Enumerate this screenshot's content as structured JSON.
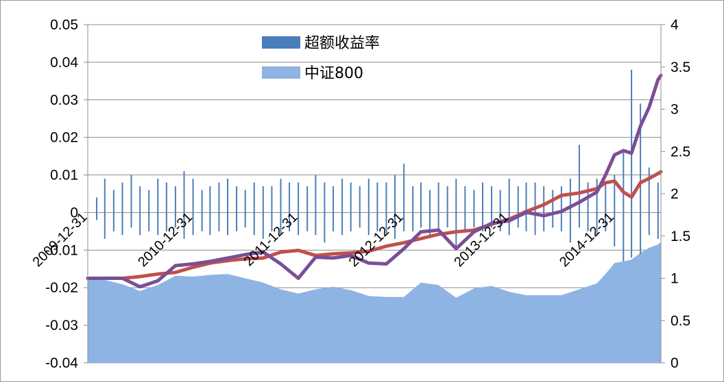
{
  "chart_data": {
    "type": "combo",
    "x_ticks": [
      "2009-12-31",
      "2010-12-31",
      "2011-12-31",
      "2012-12-31",
      "2013-12-31",
      "2014-12-31"
    ],
    "x_range": [
      "2009-12-31",
      "2015-06-10"
    ],
    "y_left": {
      "ticks": [
        "0.05",
        "0.04",
        "0.03",
        "0.02",
        "0.01",
        "0",
        "-0.01",
        "-0.02",
        "-0.03",
        "-0.04"
      ],
      "range": [
        -0.04,
        0.05
      ]
    },
    "y_right": {
      "ticks": [
        "4",
        "3.5",
        "3",
        "2.5",
        "2",
        "1.5",
        "1",
        "0.5",
        "0"
      ],
      "range": [
        0,
        4
      ]
    },
    "gridlines": "horizontal",
    "legend": {
      "position": "top-center",
      "entries": [
        {
          "label": "超额收益率",
          "color": "#4A7EBB"
        },
        {
          "label": "中证800",
          "color": "#8EB4E3"
        }
      ]
    },
    "series": [
      {
        "name": "超额收益率",
        "type": "bar",
        "axis": "left",
        "color": "#4A7EBB",
        "x": [
          "2010-01-31",
          "2010-02-28",
          "2010-03-31",
          "2010-04-30",
          "2010-05-31",
          "2010-06-30",
          "2010-07-31",
          "2010-08-31",
          "2010-09-30",
          "2010-10-31",
          "2010-11-30",
          "2010-12-31",
          "2011-01-31",
          "2011-02-28",
          "2011-03-31",
          "2011-04-30",
          "2011-05-31",
          "2011-06-30",
          "2011-07-31",
          "2011-08-31",
          "2011-09-30",
          "2011-10-31",
          "2011-11-30",
          "2011-12-31",
          "2012-01-31",
          "2012-02-29",
          "2012-03-31",
          "2012-04-30",
          "2012-05-31",
          "2012-06-30",
          "2012-07-31",
          "2012-08-31",
          "2012-09-30",
          "2012-10-31",
          "2012-11-30",
          "2012-12-31",
          "2013-01-31",
          "2013-02-28",
          "2013-03-31",
          "2013-04-30",
          "2013-05-31",
          "2013-06-30",
          "2013-07-31",
          "2013-08-31",
          "2013-09-30",
          "2013-10-31",
          "2013-11-30",
          "2013-12-31",
          "2014-01-31",
          "2014-02-28",
          "2014-03-31",
          "2014-04-30",
          "2014-05-31",
          "2014-06-30",
          "2014-07-31",
          "2014-08-31",
          "2014-09-30",
          "2014-10-31",
          "2014-11-30",
          "2014-12-31",
          "2015-01-31",
          "2015-02-28",
          "2015-03-31",
          "2015-04-30",
          "2015-05-31"
        ],
        "values_high": [
          0.004,
          0.009,
          0.006,
          0.008,
          0.01,
          0.007,
          0.006,
          0.009,
          0.008,
          0.007,
          0.011,
          0.009,
          0.006,
          0.007,
          0.008,
          0.009,
          0.007,
          0.006,
          0.008,
          0.007,
          0.007,
          0.009,
          0.008,
          0.008,
          0.007,
          0.01,
          0.008,
          0.007,
          0.009,
          0.008,
          0.007,
          0.009,
          0.008,
          0.008,
          0.01,
          0.013,
          0.007,
          0.008,
          0.006,
          0.008,
          0.007,
          0.009,
          0.007,
          0.006,
          0.008,
          0.007,
          0.006,
          0.009,
          0.007,
          0.008,
          0.008,
          0.007,
          0.006,
          0.007,
          0.009,
          0.018,
          0.008,
          0.009,
          0.008,
          0.01,
          0.016,
          0.038,
          0.029,
          0.012,
          0.008
        ],
        "values_low": [
          -0.002,
          -0.007,
          -0.005,
          -0.006,
          -0.004,
          -0.006,
          -0.005,
          -0.006,
          -0.005,
          -0.004,
          -0.007,
          -0.006,
          -0.005,
          -0.006,
          -0.005,
          -0.006,
          -0.005,
          -0.004,
          -0.006,
          -0.007,
          -0.005,
          -0.006,
          -0.005,
          -0.006,
          -0.005,
          -0.006,
          -0.008,
          -0.005,
          -0.006,
          -0.005,
          -0.004,
          -0.006,
          -0.005,
          -0.006,
          -0.007,
          -0.005,
          -0.005,
          -0.004,
          -0.006,
          -0.005,
          -0.004,
          -0.009,
          -0.005,
          -0.004,
          -0.005,
          -0.004,
          -0.005,
          -0.006,
          -0.004,
          -0.005,
          -0.006,
          -0.005,
          -0.004,
          -0.005,
          -0.008,
          -0.004,
          -0.005,
          -0.006,
          -0.005,
          -0.009,
          -0.013,
          -0.012,
          -0.011,
          -0.006,
          -0.007
        ]
      },
      {
        "name": "中证800",
        "type": "area",
        "axis": "right",
        "color": "#8EB4E3",
        "x": [
          "2009-12-31",
          "2010-02-28",
          "2010-04-30",
          "2010-06-30",
          "2010-08-31",
          "2010-10-31",
          "2010-12-31",
          "2011-02-28",
          "2011-04-30",
          "2011-06-30",
          "2011-08-31",
          "2011-10-31",
          "2011-12-31",
          "2012-02-29",
          "2012-04-30",
          "2012-06-30",
          "2012-08-31",
          "2012-10-31",
          "2012-12-31",
          "2013-02-28",
          "2013-04-30",
          "2013-06-30",
          "2013-08-31",
          "2013-10-31",
          "2013-12-31",
          "2014-02-28",
          "2014-04-30",
          "2014-06-30",
          "2014-08-31",
          "2014-10-31",
          "2014-11-30",
          "2014-12-31",
          "2015-01-31",
          "2015-02-28",
          "2015-03-31",
          "2015-04-30",
          "2015-05-31",
          "2015-06-10"
        ],
        "values": [
          1.0,
          0.98,
          0.93,
          0.85,
          0.92,
          1.03,
          1.02,
          1.04,
          1.05,
          1.0,
          0.95,
          0.87,
          0.82,
          0.87,
          0.9,
          0.86,
          0.79,
          0.78,
          0.78,
          0.95,
          0.92,
          0.77,
          0.88,
          0.91,
          0.84,
          0.8,
          0.8,
          0.8,
          0.87,
          0.94,
          1.05,
          1.18,
          1.2,
          1.22,
          1.3,
          1.36,
          1.4,
          1.43
        ]
      },
      {
        "name": "red",
        "type": "line",
        "axis": "right",
        "color": "#C0504D",
        "x": [
          "2009-12-31",
          "2010-02-28",
          "2010-04-30",
          "2010-06-30",
          "2010-08-31",
          "2010-10-31",
          "2010-12-31",
          "2011-02-28",
          "2011-04-30",
          "2011-06-30",
          "2011-08-31",
          "2011-10-31",
          "2011-12-31",
          "2012-02-29",
          "2012-04-30",
          "2012-06-30",
          "2012-08-31",
          "2012-10-31",
          "2012-12-31",
          "2013-02-28",
          "2013-04-30",
          "2013-06-30",
          "2013-08-31",
          "2013-10-31",
          "2013-12-31",
          "2014-02-28",
          "2014-04-30",
          "2014-06-30",
          "2014-08-31",
          "2014-10-31",
          "2014-11-30",
          "2014-12-31",
          "2015-01-31",
          "2015-02-28",
          "2015-03-31",
          "2015-04-30",
          "2015-05-31",
          "2015-06-10"
        ],
        "values": [
          1.0,
          1.0,
          1.0,
          1.02,
          1.05,
          1.07,
          1.13,
          1.18,
          1.21,
          1.23,
          1.24,
          1.31,
          1.33,
          1.27,
          1.29,
          1.3,
          1.32,
          1.38,
          1.42,
          1.47,
          1.52,
          1.55,
          1.57,
          1.64,
          1.7,
          1.79,
          1.87,
          1.98,
          2.01,
          2.06,
          2.13,
          2.15,
          2.02,
          1.96,
          2.13,
          2.18,
          2.24,
          2.26
        ]
      },
      {
        "name": "purple",
        "type": "line",
        "axis": "right",
        "color": "#7A4F96",
        "x": [
          "2009-12-31",
          "2010-02-28",
          "2010-04-30",
          "2010-06-30",
          "2010-08-31",
          "2010-10-31",
          "2010-12-31",
          "2011-02-28",
          "2011-04-30",
          "2011-06-30",
          "2011-08-31",
          "2011-10-31",
          "2011-12-31",
          "2012-02-29",
          "2012-04-30",
          "2012-06-30",
          "2012-08-31",
          "2012-10-31",
          "2012-12-31",
          "2013-02-28",
          "2013-04-30",
          "2013-06-30",
          "2013-08-31",
          "2013-10-31",
          "2013-12-31",
          "2014-02-28",
          "2014-04-30",
          "2014-06-30",
          "2014-08-31",
          "2014-10-31",
          "2014-11-30",
          "2014-12-31",
          "2015-01-31",
          "2015-02-28",
          "2015-03-31",
          "2015-04-30",
          "2015-05-31",
          "2015-06-10"
        ],
        "values": [
          1.0,
          1.0,
          1.0,
          0.9,
          0.97,
          1.15,
          1.17,
          1.2,
          1.24,
          1.28,
          1.31,
          1.17,
          1.0,
          1.25,
          1.24,
          1.27,
          1.18,
          1.17,
          1.35,
          1.55,
          1.57,
          1.35,
          1.55,
          1.65,
          1.68,
          1.78,
          1.74,
          1.79,
          1.9,
          2.02,
          2.22,
          2.46,
          2.51,
          2.48,
          2.8,
          3.02,
          3.35,
          3.4
        ]
      }
    ]
  }
}
